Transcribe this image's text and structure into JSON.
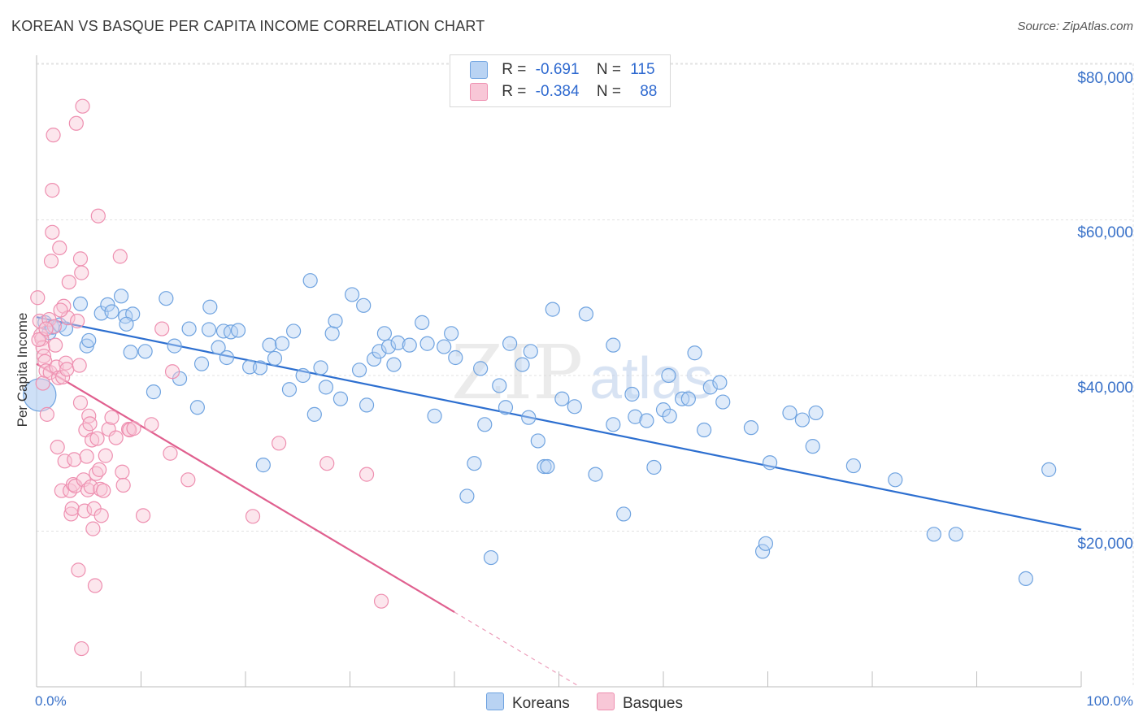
{
  "title": "KOREAN VS BASQUE PER CAPITA INCOME CORRELATION CHART",
  "source": "Source: ZipAtlas.com",
  "watermark": "ZIPatlas",
  "colors": {
    "koreans": "#6fa3e0",
    "koreans_fill": "#b9d3f3",
    "koreans_line": "#2d6fd0",
    "basques": "#ee8fb0",
    "basques_fill": "#f8c7d7",
    "basques_line": "#e0608f",
    "axis_text": "#3a72c9",
    "grid": "#e2e2e2"
  },
  "legend": {
    "rows": [
      {
        "r_label": "R =",
        "r_value": "-0.691",
        "n_label": "N =",
        "n_value": "115"
      },
      {
        "r_label": "R =",
        "r_value": "-0.384",
        "n_label": "N =",
        "n_value": "88"
      }
    ]
  },
  "bottom_legend": {
    "koreans": "Koreans",
    "basques": "Basques"
  },
  "chart_data": {
    "type": "scatter",
    "title": "KOREAN VS BASQUE PER CAPITA INCOME CORRELATION CHART",
    "xlabel": "",
    "ylabel": "Per Capita Income",
    "x_tick_labels": [
      "0.0%",
      "100.0%"
    ],
    "y_tick_labels": [
      "$20,000",
      "$40,000",
      "$60,000",
      "$80,000"
    ],
    "y_ticks": [
      20000,
      40000,
      60000,
      80000
    ],
    "xlim": [
      0,
      100
    ],
    "ylim": [
      0,
      84000
    ],
    "grid": true,
    "legend_placement": "top-center",
    "series": [
      {
        "name": "Koreans",
        "r": -0.691,
        "n": 115,
        "trend": {
          "x": [
            0,
            100
          ],
          "y": [
            47500,
            20200
          ]
        },
        "points": [
          [
            0.3,
            37500
          ],
          [
            0.8,
            46800
          ],
          [
            1.2,
            45500
          ],
          [
            1.5,
            46200
          ],
          [
            2.2,
            46500
          ],
          [
            4.2,
            49200
          ],
          [
            4.8,
            43800
          ],
          [
            5.0,
            44500
          ],
          [
            6.2,
            48000
          ],
          [
            6.8,
            49100
          ],
          [
            7.2,
            48200
          ],
          [
            8.1,
            50200
          ],
          [
            8.5,
            47600
          ],
          [
            9.2,
            47900
          ],
          [
            8.6,
            46600
          ],
          [
            9.0,
            43000
          ],
          [
            10.4,
            43100
          ],
          [
            11.2,
            37900
          ],
          [
            12.4,
            49900
          ],
          [
            13.2,
            43800
          ],
          [
            13.7,
            39600
          ],
          [
            14.6,
            46000
          ],
          [
            15.8,
            41500
          ],
          [
            15.4,
            35900
          ],
          [
            16.5,
            45900
          ],
          [
            16.6,
            48800
          ],
          [
            17.4,
            43600
          ],
          [
            17.9,
            45700
          ],
          [
            18.2,
            42300
          ],
          [
            18.6,
            45600
          ],
          [
            19.3,
            45800
          ],
          [
            20.4,
            41100
          ],
          [
            21.4,
            41000
          ],
          [
            21.7,
            28500
          ],
          [
            22.3,
            43900
          ],
          [
            22.8,
            42200
          ],
          [
            23.5,
            44100
          ],
          [
            24.2,
            38200
          ],
          [
            24.6,
            45700
          ],
          [
            25.5,
            40000
          ],
          [
            26.2,
            52200
          ],
          [
            26.6,
            35000
          ],
          [
            27.2,
            41000
          ],
          [
            27.7,
            38500
          ],
          [
            28.3,
            45400
          ],
          [
            28.6,
            47000
          ],
          [
            29.1,
            37000
          ],
          [
            30.2,
            50400
          ],
          [
            30.9,
            40700
          ],
          [
            31.3,
            49000
          ],
          [
            31.6,
            36200
          ],
          [
            32.3,
            42100
          ],
          [
            32.8,
            43100
          ],
          [
            33.3,
            45400
          ],
          [
            33.7,
            43700
          ],
          [
            34.2,
            41400
          ],
          [
            34.6,
            44200
          ],
          [
            35.7,
            43900
          ],
          [
            36.9,
            46800
          ],
          [
            37.4,
            44100
          ],
          [
            38.1,
            34800
          ],
          [
            39.0,
            43700
          ],
          [
            39.7,
            45400
          ],
          [
            40.1,
            42300
          ],
          [
            41.2,
            24500
          ],
          [
            41.9,
            28700
          ],
          [
            42.5,
            40900
          ],
          [
            42.9,
            33700
          ],
          [
            43.5,
            16600
          ],
          [
            44.3,
            38700
          ],
          [
            44.9,
            35900
          ],
          [
            45.3,
            44100
          ],
          [
            46.5,
            41400
          ],
          [
            47.1,
            34600
          ],
          [
            47.3,
            43100
          ],
          [
            48.0,
            31600
          ],
          [
            48.6,
            28300
          ],
          [
            48.9,
            28300
          ],
          [
            49.4,
            48500
          ],
          [
            50.3,
            37000
          ],
          [
            51.5,
            36000
          ],
          [
            52.6,
            47900
          ],
          [
            53.5,
            27300
          ],
          [
            55.2,
            43900
          ],
          [
            55.2,
            33700
          ],
          [
            56.2,
            22200
          ],
          [
            57.0,
            37600
          ],
          [
            57.3,
            34700
          ],
          [
            58.4,
            34200
          ],
          [
            59.1,
            28200
          ],
          [
            60.0,
            35600
          ],
          [
            60.5,
            40000
          ],
          [
            60.6,
            34800
          ],
          [
            61.8,
            37000
          ],
          [
            62.4,
            37000
          ],
          [
            63.0,
            42900
          ],
          [
            63.9,
            33000
          ],
          [
            64.5,
            38500
          ],
          [
            65.4,
            39100
          ],
          [
            65.7,
            36600
          ],
          [
            68.4,
            33300
          ],
          [
            69.5,
            17400
          ],
          [
            69.8,
            18400
          ],
          [
            70.2,
            28800
          ],
          [
            72.1,
            35200
          ],
          [
            73.3,
            34300
          ],
          [
            74.3,
            30900
          ],
          [
            74.6,
            35200
          ],
          [
            78.2,
            28400
          ],
          [
            82.2,
            26600
          ],
          [
            85.9,
            19600
          ],
          [
            88.0,
            19600
          ],
          [
            94.7,
            13900
          ],
          [
            96.9,
            27900
          ],
          [
            2.8,
            46000
          ]
        ]
      },
      {
        "name": "Basques",
        "r": -0.384,
        "n": 88,
        "trend": {
          "x": [
            0,
            40,
            52
          ],
          "y": [
            41500,
            9600,
            0
          ]
        },
        "points": [
          [
            0.1,
            50000
          ],
          [
            0.3,
            47000
          ],
          [
            0.4,
            45200
          ],
          [
            0.5,
            44700
          ],
          [
            0.6,
            43600
          ],
          [
            0.7,
            42500
          ],
          [
            0.8,
            41800
          ],
          [
            0.9,
            40600
          ],
          [
            1.0,
            35000
          ],
          [
            1.2,
            47200
          ],
          [
            1.3,
            40400
          ],
          [
            1.4,
            54700
          ],
          [
            1.5,
            58400
          ],
          [
            1.5,
            63800
          ],
          [
            1.6,
            70900
          ],
          [
            1.7,
            46300
          ],
          [
            1.9,
            41100
          ],
          [
            2.0,
            30800
          ],
          [
            2.1,
            39700
          ],
          [
            2.2,
            56400
          ],
          [
            2.4,
            25200
          ],
          [
            2.5,
            39800
          ],
          [
            2.6,
            48900
          ],
          [
            2.7,
            29000
          ],
          [
            2.8,
            41600
          ],
          [
            2.9,
            40800
          ],
          [
            3.0,
            47400
          ],
          [
            3.1,
            52000
          ],
          [
            3.2,
            25200
          ],
          [
            3.3,
            22200
          ],
          [
            3.4,
            22900
          ],
          [
            3.5,
            26000
          ],
          [
            3.6,
            29200
          ],
          [
            3.7,
            25800
          ],
          [
            3.8,
            72400
          ],
          [
            3.9,
            47000
          ],
          [
            4.0,
            15000
          ],
          [
            4.1,
            41300
          ],
          [
            4.2,
            36500
          ],
          [
            4.2,
            55000
          ],
          [
            4.3,
            53200
          ],
          [
            4.3,
            4900
          ],
          [
            4.4,
            74600
          ],
          [
            4.5,
            26600
          ],
          [
            4.6,
            22600
          ],
          [
            4.7,
            33000
          ],
          [
            4.8,
            29600
          ],
          [
            4.9,
            25300
          ],
          [
            5.0,
            34800
          ],
          [
            5.1,
            33800
          ],
          [
            5.2,
            25700
          ],
          [
            5.3,
            31700
          ],
          [
            5.4,
            20300
          ],
          [
            5.5,
            22900
          ],
          [
            5.6,
            13000
          ],
          [
            5.7,
            27400
          ],
          [
            5.8,
            31900
          ],
          [
            5.9,
            60500
          ],
          [
            6.0,
            27900
          ],
          [
            6.1,
            25400
          ],
          [
            6.2,
            22000
          ],
          [
            6.4,
            25200
          ],
          [
            6.6,
            29700
          ],
          [
            6.9,
            33100
          ],
          [
            7.2,
            34600
          ],
          [
            7.6,
            32000
          ],
          [
            8.0,
            55300
          ],
          [
            8.2,
            27600
          ],
          [
            8.3,
            25900
          ],
          [
            8.8,
            33100
          ],
          [
            8.9,
            33000
          ],
          [
            9.3,
            33200
          ],
          [
            10.2,
            22000
          ],
          [
            11.0,
            33700
          ],
          [
            12.0,
            46000
          ],
          [
            12.8,
            30000
          ],
          [
            13.0,
            40500
          ],
          [
            14.5,
            26600
          ],
          [
            20.7,
            21900
          ],
          [
            23.2,
            31300
          ],
          [
            27.8,
            28700
          ],
          [
            31.6,
            27300
          ],
          [
            33.0,
            11000
          ],
          [
            0.2,
            44600
          ],
          [
            0.9,
            46000
          ],
          [
            1.8,
            43900
          ],
          [
            2.3,
            48400
          ],
          [
            0.6,
            39000
          ]
        ]
      }
    ]
  }
}
